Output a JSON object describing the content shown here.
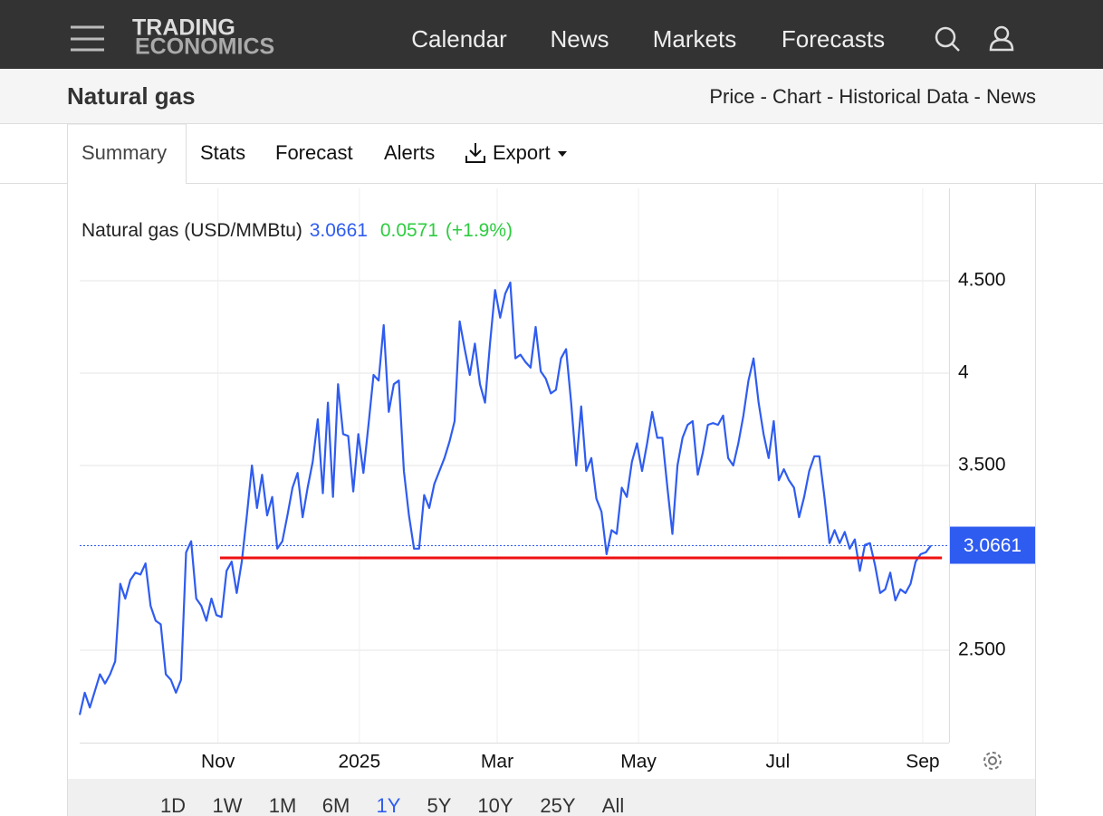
{
  "header": {
    "logo": [
      "TRADING",
      "ECONOMICS"
    ],
    "nav": [
      "Calendar",
      "News",
      "Markets",
      "Forecasts"
    ]
  },
  "subheader": {
    "title": "Natural gas",
    "links": "Price - Chart - Historical Data - News"
  },
  "tabs": [
    "Summary",
    "Stats",
    "Forecast",
    "Alerts",
    "Export"
  ],
  "ranges": [
    "1D",
    "1W",
    "1M",
    "6M",
    "1Y",
    "5Y",
    "10Y",
    "25Y",
    "All"
  ],
  "active_range": "1Y",
  "chart_data": {
    "type": "line",
    "legend_name": "Natural gas (USD/MMBtu)",
    "price": 3.0661,
    "change": 0.0571,
    "change_pct_label": "(+1.9%)",
    "price_color": "#2f5cf0",
    "change_color": "#2ecc40",
    "series": [
      {
        "name": "Natural gas",
        "color": "#2f5cf0",
        "values": [
          2.15,
          2.27,
          2.19,
          2.28,
          2.37,
          2.32,
          2.37,
          2.44,
          2.86,
          2.78,
          2.88,
          2.92,
          2.91,
          2.97,
          2.74,
          2.66,
          2.64,
          2.37,
          2.34,
          2.27,
          2.34,
          3.03,
          3.09,
          2.78,
          2.74,
          2.66,
          2.78,
          2.69,
          2.68,
          2.93,
          2.98,
          2.81,
          2.98,
          3.23,
          3.5,
          3.27,
          3.45,
          3.23,
          3.33,
          3.05,
          3.09,
          3.23,
          3.38,
          3.46,
          3.22,
          3.38,
          3.52,
          3.75,
          3.35,
          3.84,
          3.33,
          3.94,
          3.67,
          3.66,
          3.36,
          3.67,
          3.46,
          3.72,
          3.99,
          3.96,
          4.26,
          3.79,
          3.94,
          3.96,
          3.47,
          3.23,
          3.05,
          3.05,
          3.34,
          3.27,
          3.4,
          3.47,
          3.54,
          3.63,
          3.74,
          4.28,
          4.13,
          3.99,
          4.16,
          3.94,
          3.84,
          4.16,
          4.45,
          4.3,
          4.43,
          4.49,
          4.08,
          4.1,
          4.06,
          4.03,
          4.25,
          4.01,
          3.97,
          3.89,
          3.91,
          4.08,
          4.13,
          3.84,
          3.5,
          3.82,
          3.47,
          3.54,
          3.32,
          3.25,
          3.02,
          3.15,
          3.13,
          3.38,
          3.33,
          3.52,
          3.62,
          3.47,
          3.62,
          3.79,
          3.65,
          3.65,
          3.38,
          3.13,
          3.5,
          3.65,
          3.72,
          3.74,
          3.45,
          3.57,
          3.72,
          3.73,
          3.72,
          3.77,
          3.54,
          3.5,
          3.62,
          3.77,
          3.96,
          4.08,
          3.84,
          3.67,
          3.54,
          3.74,
          3.42,
          3.48,
          3.42,
          3.38,
          3.22,
          3.33,
          3.47,
          3.55,
          3.55,
          3.33,
          3.08,
          3.15,
          3.08,
          3.14,
          3.05,
          3.1,
          2.93,
          3.07,
          3.08,
          2.96,
          2.81,
          2.83,
          2.92,
          2.77,
          2.83,
          2.81,
          2.86,
          2.98,
          3.02,
          3.03,
          3.0661
        ]
      }
    ],
    "xlim": [
      0,
      171.6
    ],
    "xticks": [
      {
        "value": 27.3,
        "label": "Nov"
      },
      {
        "value": 55.2,
        "label": "2025"
      },
      {
        "value": 82.4,
        "label": "Mar"
      },
      {
        "value": 110.3,
        "label": "May"
      },
      {
        "value": 137.8,
        "label": "Jul"
      },
      {
        "value": 166.4,
        "label": "Sep"
      }
    ],
    "ylim": [
      2.0,
      5.0
    ],
    "yticks": [
      {
        "value": 2.5,
        "label": "2.500"
      },
      {
        "value": 3.5,
        "label": "3.500"
      },
      4,
      {
        "value": 4.5,
        "label": "4.500"
      }
    ],
    "grid": true,
    "hline": {
      "value": 3.0,
      "color": "#ee1111",
      "x": [
        27.7,
        170.2
      ]
    }
  }
}
